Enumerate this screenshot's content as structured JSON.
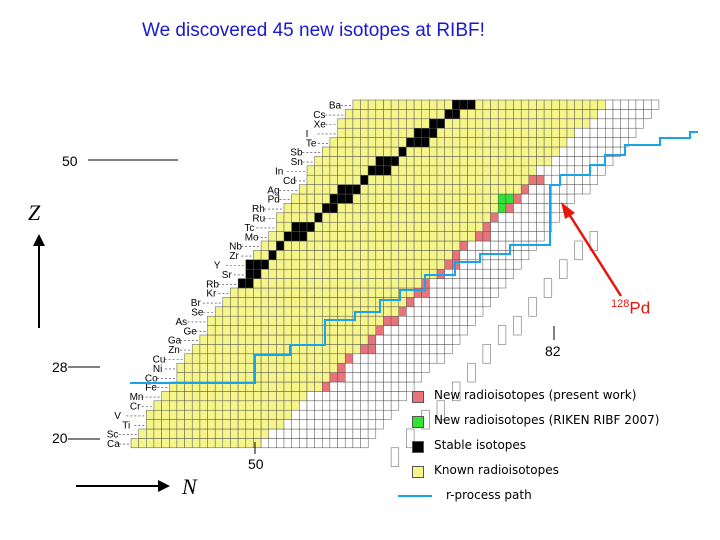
{
  "title": "We discovered 45 new isotopes at RIBF!",
  "axes": {
    "z_label": "Z",
    "n_label": "N",
    "z_ticks": [
      "50",
      "28",
      "20"
    ],
    "n_ticks": [
      "50",
      "82"
    ]
  },
  "elements": [
    "Ba",
    "Cs",
    "Xe",
    "I",
    "Te",
    "Sb",
    "Sn",
    "In",
    "Cd",
    "Ag",
    "Pd",
    "Rh",
    "Ru",
    "Tc",
    "Mo",
    "Nb",
    "Zr",
    "Y",
    "Sr",
    "Rb",
    "Kr",
    "Br",
    "Se",
    "As",
    "Ge",
    "Ga",
    "Zn",
    "Cu",
    "Ni",
    "Co",
    "Fe",
    "Mn",
    "Cr",
    "V",
    "Ti",
    "Sc",
    "Ca"
  ],
  "annotation": {
    "mass": "128",
    "symbol": "Pd"
  },
  "legend": [
    {
      "label": "New radioisotopes (present work)",
      "color": "#e8737a"
    },
    {
      "label": "New radioisotopes (RIKEN RIBF 2007)",
      "color": "#33e233"
    },
    {
      "label": "Stable isotopes",
      "color": "#000000"
    },
    {
      "label": "Known radioisotopes",
      "color": "#f5f58a"
    },
    {
      "label": "r-process path",
      "color": "#1aa3e8"
    }
  ],
  "colors": {
    "known": "#f5f58a",
    "stable": "#000000",
    "new_present": "#e8737a",
    "new_2007": "#33e233",
    "r_process": "#1aa3e8",
    "arrow": "#e8150d"
  }
}
